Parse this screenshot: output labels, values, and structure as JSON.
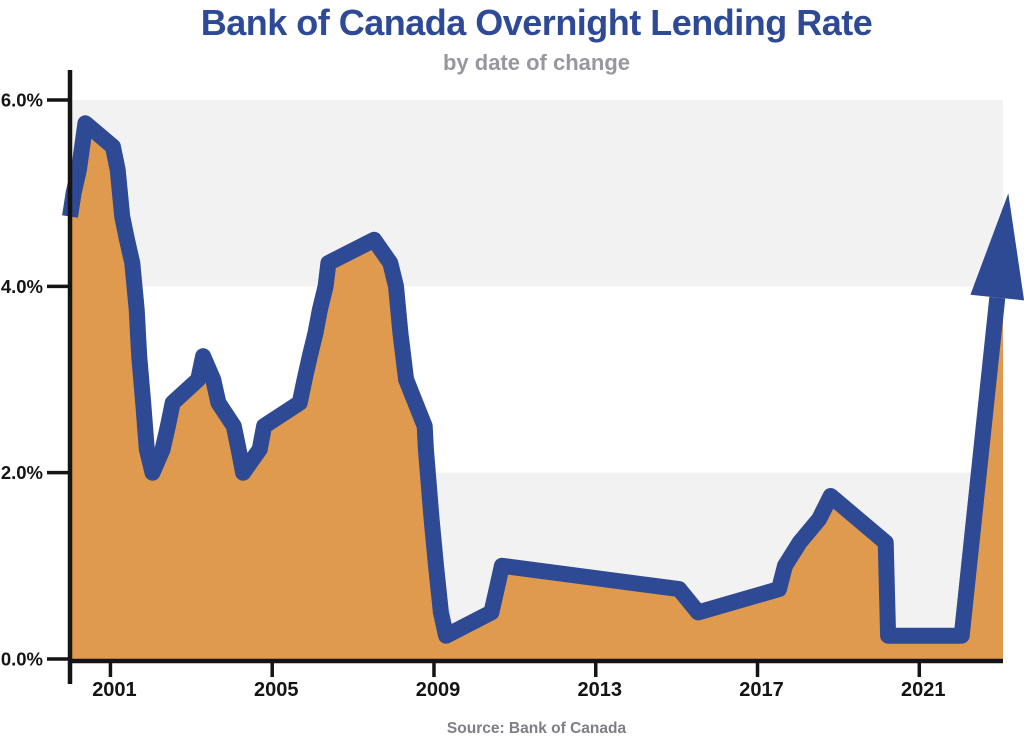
{
  "header": {
    "title": "Bank of Canada Overnight Lending Rate",
    "subtitle": "by date of change"
  },
  "footer": {
    "source": "Source: Bank of Canada"
  },
  "colors": {
    "line": "#2f4a94",
    "fill": "#df9a4e",
    "band": "#f2f2f2",
    "axis": "#141414",
    "title": "#2e4a96",
    "subtitle": "#97979f",
    "source": "#7e7e87"
  },
  "chart_data": {
    "type": "area",
    "title": "Bank of Canada Overnight Lending Rate",
    "subtitle": "by date of change",
    "source": "Source: Bank of Canada",
    "xlabel": "",
    "ylabel": "",
    "unit": "%",
    "xlim": [
      2000.0,
      2023.07
    ],
    "ylim": [
      0,
      6
    ],
    "x_ticks": [
      2001,
      2005,
      2009,
      2013,
      2017,
      2021
    ],
    "y_ticks": [
      0,
      2,
      4,
      6
    ],
    "y_tick_labels": [
      "0.0%",
      "2.0%",
      "4.0%",
      "6.0%"
    ],
    "grid": false,
    "legend": "none",
    "shaded_bands": [
      [
        4,
        6
      ],
      [
        0,
        2
      ]
    ],
    "series": [
      {
        "name": "Overnight lending rate",
        "points": [
          [
            2000.0,
            4.75
          ],
          [
            2000.09,
            5.0
          ],
          [
            2000.22,
            5.25
          ],
          [
            2000.38,
            5.75
          ],
          [
            2001.06,
            5.5
          ],
          [
            2001.18,
            5.25
          ],
          [
            2001.29,
            4.75
          ],
          [
            2001.41,
            4.5
          ],
          [
            2001.54,
            4.25
          ],
          [
            2001.65,
            3.75
          ],
          [
            2001.71,
            3.25
          ],
          [
            2001.81,
            2.75
          ],
          [
            2001.9,
            2.25
          ],
          [
            2002.04,
            2.0
          ],
          [
            2002.29,
            2.25
          ],
          [
            2002.42,
            2.5
          ],
          [
            2002.54,
            2.75
          ],
          [
            2003.17,
            3.0
          ],
          [
            2003.29,
            3.25
          ],
          [
            2003.54,
            3.0
          ],
          [
            2003.67,
            2.75
          ],
          [
            2004.05,
            2.5
          ],
          [
            2004.17,
            2.25
          ],
          [
            2004.28,
            2.0
          ],
          [
            2004.69,
            2.25
          ],
          [
            2004.8,
            2.5
          ],
          [
            2005.68,
            2.75
          ],
          [
            2005.8,
            3.0
          ],
          [
            2005.93,
            3.25
          ],
          [
            2006.07,
            3.5
          ],
          [
            2006.18,
            3.75
          ],
          [
            2006.32,
            4.0
          ],
          [
            2006.39,
            4.25
          ],
          [
            2007.52,
            4.5
          ],
          [
            2007.92,
            4.25
          ],
          [
            2008.06,
            4.0
          ],
          [
            2008.17,
            3.5
          ],
          [
            2008.31,
            3.0
          ],
          [
            2008.77,
            2.5
          ],
          [
            2008.8,
            2.25
          ],
          [
            2008.94,
            1.5
          ],
          [
            2009.05,
            1.0
          ],
          [
            2009.17,
            0.5
          ],
          [
            2009.3,
            0.25
          ],
          [
            2010.42,
            0.5
          ],
          [
            2010.55,
            0.75
          ],
          [
            2010.68,
            1.0
          ],
          [
            2015.06,
            0.75
          ],
          [
            2015.53,
            0.5
          ],
          [
            2017.53,
            0.75
          ],
          [
            2017.68,
            1.0
          ],
          [
            2018.04,
            1.25
          ],
          [
            2018.52,
            1.5
          ],
          [
            2018.81,
            1.75
          ],
          [
            2020.17,
            1.25
          ],
          [
            2020.2,
            0.75
          ],
          [
            2020.23,
            0.25
          ],
          [
            2022.05,
            0.25
          ]
        ]
      }
    ],
    "annotation_arrow": {
      "meaning": "rates rising rapidly in 2022",
      "from": [
        2022.05,
        0.25
      ],
      "to": [
        2023.2,
        5.0
      ]
    }
  }
}
